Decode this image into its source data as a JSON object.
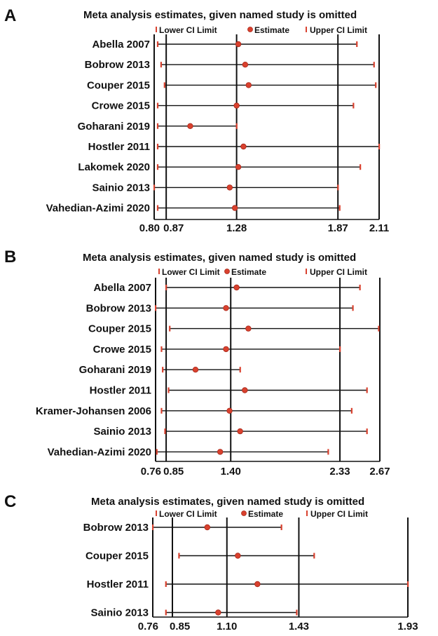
{
  "colors": {
    "marker": "#d9412e",
    "marker_stroke": "#a8281a",
    "line": "#111111"
  },
  "chart_data": [
    {
      "type": "forest",
      "panel": "A",
      "title": "Meta analysis estimates, given named study is omitted",
      "legend": [
        "Lower CI Limit",
        "Estimate",
        "Upper CI Limit"
      ],
      "x_ticks": [
        "0.80",
        "0.87",
        "1.28",
        "1.87",
        "2.11"
      ],
      "xlim": [
        0.8,
        2.11
      ],
      "studies": [
        {
          "name": "Abella 2007",
          "lower": 0.82,
          "estimate": 1.29,
          "upper": 1.98
        },
        {
          "name": "Bobrow 2013",
          "lower": 0.84,
          "estimate": 1.33,
          "upper": 2.08
        },
        {
          "name": "Couper 2015",
          "lower": 0.86,
          "estimate": 1.35,
          "upper": 2.09
        },
        {
          "name": "Crowe 2015",
          "lower": 0.82,
          "estimate": 1.28,
          "upper": 1.96
        },
        {
          "name": "Goharani 2019",
          "lower": 0.82,
          "estimate": 1.01,
          "upper": 1.28
        },
        {
          "name": "Hostler 2011",
          "lower": 0.82,
          "estimate": 1.32,
          "upper": 2.11
        },
        {
          "name": "Lakomek 2020",
          "lower": 0.82,
          "estimate": 1.29,
          "upper": 2.0
        },
        {
          "name": "Sainio 2013",
          "lower": 0.8,
          "estimate": 1.24,
          "upper": 1.87
        },
        {
          "name": "Vahedian-Azimi 2020",
          "lower": 0.82,
          "estimate": 1.27,
          "upper": 1.88
        }
      ]
    },
    {
      "type": "forest",
      "panel": "B",
      "title": "Meta analysis estimates, given named study is omitted",
      "legend": [
        "Lower CI Limit",
        "Estimate",
        "Upper CI Limit"
      ],
      "x_ticks": [
        "0.76",
        "0.85",
        "1.40",
        "2.33",
        "2.67"
      ],
      "xlim": [
        0.76,
        2.67
      ],
      "studies": [
        {
          "name": "Abella 2007",
          "lower": 0.85,
          "estimate": 1.45,
          "upper": 2.5
        },
        {
          "name": "Bobrow 2013",
          "lower": 0.76,
          "estimate": 1.36,
          "upper": 2.44
        },
        {
          "name": "Couper 2015",
          "lower": 0.88,
          "estimate": 1.55,
          "upper": 2.66
        },
        {
          "name": "Crowe 2015",
          "lower": 0.81,
          "estimate": 1.36,
          "upper": 2.33
        },
        {
          "name": "Goharani 2019",
          "lower": 0.82,
          "estimate": 1.1,
          "upper": 1.48
        },
        {
          "name": "Hostler 2011",
          "lower": 0.87,
          "estimate": 1.52,
          "upper": 2.56
        },
        {
          "name": "Kramer-Johansen 2006",
          "lower": 0.81,
          "estimate": 1.39,
          "upper": 2.43
        },
        {
          "name": "Sainio 2013",
          "lower": 0.84,
          "estimate": 1.48,
          "upper": 2.56
        },
        {
          "name": "Vahedian-Azimi 2020",
          "lower": 0.77,
          "estimate": 1.31,
          "upper": 2.23
        }
      ]
    },
    {
      "type": "forest",
      "panel": "C",
      "title": "Meta analysis estimates, given named study is omitted",
      "legend": [
        "Lower CI Limit",
        "Estimate",
        "Upper CI Limit"
      ],
      "x_ticks": [
        "0.76",
        "0.85",
        "1.10",
        "1.43",
        "1.93"
      ],
      "xlim": [
        0.76,
        1.93
      ],
      "studies": [
        {
          "name": "Bobrow 2013",
          "lower": 0.76,
          "estimate": 1.01,
          "upper": 1.35
        },
        {
          "name": "Couper 2015",
          "lower": 0.88,
          "estimate": 1.15,
          "upper": 1.5
        },
        {
          "name": "Hostler 2011",
          "lower": 0.82,
          "estimate": 1.24,
          "upper": 1.93
        },
        {
          "name": "Sainio 2013",
          "lower": 0.82,
          "estimate": 1.06,
          "upper": 1.42
        }
      ]
    }
  ]
}
